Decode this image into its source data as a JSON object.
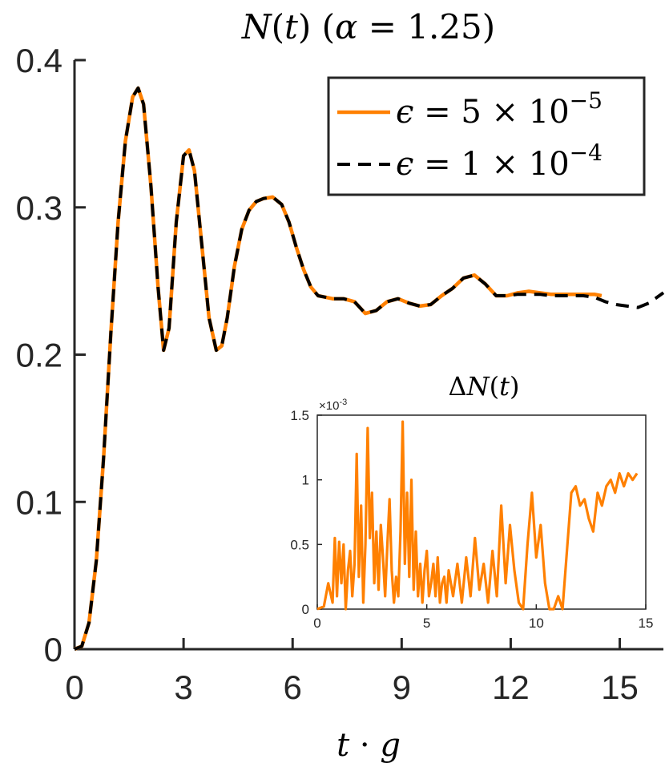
{
  "chart_data": [
    {
      "type": "line",
      "title": "N(t) (α = 1.25)",
      "xlabel": "t · g",
      "ylabel": "",
      "xlim": [
        0,
        16.2
      ],
      "ylim": [
        0,
        0.4
      ],
      "xticks": [
        0,
        3,
        6,
        9,
        12,
        15
      ],
      "yticks": [
        0,
        0.1,
        0.2,
        0.3,
        0.4
      ],
      "xtick_labels": [
        "0",
        "3",
        "6",
        "9",
        "12",
        "15"
      ],
      "ytick_labels": [
        "0",
        "0.1",
        "0.2",
        "0.3",
        "0.4"
      ],
      "legend_position": "top-right",
      "grid": false,
      "series": [
        {
          "name": "ε = 5 × 10^-5",
          "color": "#ff8000",
          "style": "solid",
          "x": [
            0,
            0.2,
            0.4,
            0.6,
            0.8,
            1.0,
            1.2,
            1.4,
            1.6,
            1.75,
            1.9,
            2.1,
            2.3,
            2.45,
            2.6,
            2.8,
            3.0,
            3.15,
            3.3,
            3.5,
            3.7,
            3.9,
            4.05,
            4.2,
            4.4,
            4.6,
            4.8,
            5.0,
            5.2,
            5.45,
            5.7,
            5.9,
            6.1,
            6.3,
            6.5,
            6.7,
            6.9,
            7.1,
            7.4,
            7.7,
            8.0,
            8.3,
            8.6,
            8.9,
            9.2,
            9.5,
            9.8,
            10.1,
            10.4,
            10.7,
            11.0,
            11.3,
            11.6,
            11.9,
            12.2,
            12.5,
            12.8,
            13.1,
            13.4,
            13.7,
            14.0,
            14.3,
            14.5
          ],
          "y": [
            0.0,
            0.002,
            0.018,
            0.06,
            0.13,
            0.215,
            0.29,
            0.345,
            0.375,
            0.381,
            0.37,
            0.315,
            0.245,
            0.203,
            0.218,
            0.29,
            0.335,
            0.339,
            0.325,
            0.275,
            0.225,
            0.203,
            0.206,
            0.225,
            0.26,
            0.285,
            0.298,
            0.304,
            0.306,
            0.307,
            0.302,
            0.29,
            0.273,
            0.258,
            0.246,
            0.24,
            0.239,
            0.238,
            0.238,
            0.236,
            0.228,
            0.23,
            0.236,
            0.238,
            0.235,
            0.233,
            0.234,
            0.24,
            0.245,
            0.252,
            0.254,
            0.248,
            0.24,
            0.24,
            0.242,
            0.243,
            0.242,
            0.241,
            0.241,
            0.241,
            0.241,
            0.241,
            0.24
          ]
        },
        {
          "name": "ε = 1 × 10^-4",
          "color": "#000000",
          "style": "dashed",
          "x": [
            0,
            0.2,
            0.4,
            0.6,
            0.8,
            1.0,
            1.2,
            1.4,
            1.6,
            1.75,
            1.9,
            2.1,
            2.3,
            2.45,
            2.6,
            2.8,
            3.0,
            3.15,
            3.3,
            3.5,
            3.7,
            3.9,
            4.05,
            4.2,
            4.4,
            4.6,
            4.8,
            5.0,
            5.2,
            5.45,
            5.7,
            5.9,
            6.1,
            6.3,
            6.5,
            6.7,
            6.9,
            7.1,
            7.4,
            7.7,
            8.0,
            8.3,
            8.6,
            8.9,
            9.2,
            9.5,
            9.8,
            10.1,
            10.4,
            10.7,
            11.0,
            11.3,
            11.6,
            11.9,
            12.2,
            12.5,
            12.8,
            13.1,
            13.4,
            13.7,
            14.0,
            14.3,
            14.6,
            14.9,
            15.2,
            15.5,
            15.8,
            16.2
          ],
          "y": [
            0.0,
            0.002,
            0.018,
            0.06,
            0.13,
            0.215,
            0.29,
            0.345,
            0.375,
            0.381,
            0.37,
            0.315,
            0.245,
            0.203,
            0.218,
            0.29,
            0.335,
            0.339,
            0.325,
            0.275,
            0.225,
            0.203,
            0.206,
            0.225,
            0.26,
            0.285,
            0.298,
            0.304,
            0.306,
            0.307,
            0.302,
            0.29,
            0.273,
            0.258,
            0.246,
            0.24,
            0.239,
            0.238,
            0.238,
            0.236,
            0.228,
            0.23,
            0.236,
            0.238,
            0.235,
            0.233,
            0.234,
            0.24,
            0.245,
            0.252,
            0.254,
            0.248,
            0.24,
            0.24,
            0.241,
            0.241,
            0.241,
            0.24,
            0.24,
            0.24,
            0.24,
            0.239,
            0.236,
            0.234,
            0.233,
            0.232,
            0.235,
            0.242
          ]
        }
      ]
    },
    {
      "type": "line",
      "title": "ΔN(t)",
      "xlabel": "",
      "ylabel": "",
      "xlim": [
        0,
        15
      ],
      "ylim": [
        0,
        0.0015
      ],
      "exponent_label": "×10^-3",
      "xticks": [
        0,
        5,
        10,
        15
      ],
      "yticks": [
        0,
        0.5,
        1,
        1.5
      ],
      "xtick_labels": [
        "0",
        "5",
        "10",
        "15"
      ],
      "ytick_labels": [
        "0",
        "0.5",
        "1",
        "1.5"
      ],
      "series": [
        {
          "color": "#ff8000",
          "x": [
            0,
            0.3,
            0.5,
            0.7,
            0.8,
            0.9,
            1.0,
            1.1,
            1.2,
            1.3,
            1.4,
            1.5,
            1.6,
            1.7,
            1.8,
            1.9,
            2.0,
            2.1,
            2.2,
            2.3,
            2.4,
            2.5,
            2.6,
            2.7,
            2.8,
            2.9,
            3.0,
            3.1,
            3.2,
            3.3,
            3.4,
            3.5,
            3.6,
            3.7,
            3.8,
            3.9,
            4.0,
            4.1,
            4.2,
            4.3,
            4.4,
            4.5,
            4.6,
            4.7,
            4.8,
            4.9,
            5.0,
            5.1,
            5.2,
            5.3,
            5.4,
            5.5,
            5.6,
            5.7,
            5.8,
            5.9,
            6.0,
            6.2,
            6.4,
            6.6,
            6.8,
            7.0,
            7.2,
            7.4,
            7.6,
            7.8,
            8.0,
            8.2,
            8.4,
            8.6,
            8.8,
            9.0,
            9.2,
            9.4,
            9.6,
            9.8,
            10.0,
            10.2,
            10.4,
            10.6,
            10.8,
            11.0,
            11.2,
            11.4,
            11.6,
            11.8,
            12.0,
            12.2,
            12.4,
            12.6,
            12.8,
            13.0,
            13.2,
            13.4,
            13.6,
            13.8,
            14.0,
            14.2,
            14.4,
            14.6
          ],
          "y": [
            0.0,
            2e-05,
            0.0002,
            5e-05,
            0.00055,
            0.0001,
            0.00052,
            0.0002,
            0.0005,
            0.0,
            0.0003,
            0.00045,
            0.0001,
            0.00035,
            0.0012,
            0.00025,
            0.0008,
            5e-05,
            0.0005,
            0.0014,
            0.00055,
            0.0009,
            0.0002,
            0.0006,
            0.00015,
            0.00065,
            0.0004,
            0.0001,
            0.0005,
            0.00085,
            0.0003,
            5e-05,
            0.00025,
            0.0001,
            0.0006,
            0.00145,
            0.00035,
            0.0009,
            0.00025,
            0.001,
            0.00015,
            0.0006,
            0.0001,
            0.00035,
            5e-05,
            0.0003,
            0.00045,
            0.0001,
            0.0002,
            0.00035,
            0.0001,
            0.0004,
            5e-05,
            0.0002,
            0.00025,
            5e-05,
            0.0003,
            0.0001,
            0.00035,
            5e-05,
            0.0004,
            0.0001,
            0.00055,
            0.00015,
            0.00035,
            5e-05,
            0.00045,
            0.0001,
            0.0008,
            0.0002,
            0.00065,
            0.0003,
            5e-05,
            0.0,
            0.0005,
            0.0009,
            0.0004,
            0.00065,
            0.0002,
            0.0,
            0.0,
            0.0001,
            0.0,
            0.00045,
            0.0009,
            0.00095,
            0.0008,
            0.00085,
            0.0007,
            0.0006,
            0.0009,
            0.0008,
            0.00095,
            0.001,
            0.0009,
            0.00105,
            0.00095,
            0.00105,
            0.001,
            0.00105
          ]
        }
      ]
    }
  ]
}
